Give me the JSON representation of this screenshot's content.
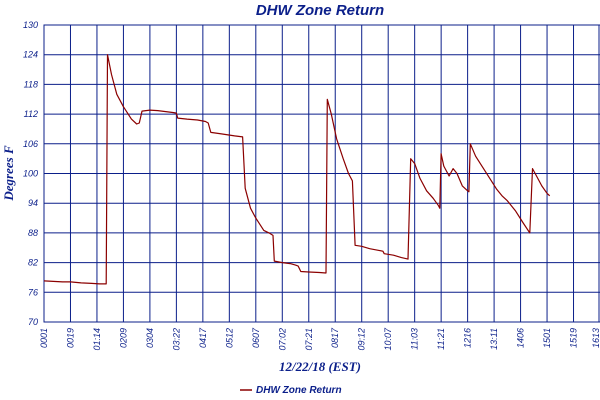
{
  "chart_data": {
    "type": "line",
    "title": "DHW Zone Return",
    "xlabel": "12/22/18 (EST)",
    "ylabel": "Degrees F",
    "ylim": [
      70,
      130
    ],
    "yticks": [
      70,
      76,
      82,
      88,
      94,
      100,
      106,
      112,
      118,
      124,
      130
    ],
    "xticks": [
      "0001",
      "0019",
      "01:14",
      "0209",
      "0304",
      "03:22",
      "0417",
      "0512",
      "0607",
      "07:02",
      "07:21",
      "0817",
      "09:12",
      "10:07",
      "11:03",
      "11:21",
      "1216",
      "13:11",
      "1406",
      "1501",
      "1519",
      "1613"
    ],
    "grid": true,
    "legend_position": "bottom",
    "colors": {
      "series": "#8b0000",
      "grid": "#0b1f8a",
      "text": "#0b1f8a"
    },
    "series": [
      {
        "name": "DHW Zone Return",
        "points": [
          [
            0.0,
            78.3
          ],
          [
            0.35,
            78.2
          ],
          [
            0.7,
            78.1
          ],
          [
            1.0,
            78.1
          ],
          [
            1.4,
            77.9
          ],
          [
            1.8,
            77.8
          ],
          [
            2.1,
            77.7
          ],
          [
            2.35,
            77.7
          ],
          [
            2.4,
            124.0
          ],
          [
            2.55,
            120.0
          ],
          [
            2.75,
            116.0
          ],
          [
            3.0,
            113.5
          ],
          [
            3.3,
            111.0
          ],
          [
            3.5,
            110.0
          ],
          [
            3.6,
            110.2
          ],
          [
            3.7,
            112.6
          ],
          [
            4.0,
            112.8
          ],
          [
            4.3,
            112.7
          ],
          [
            4.6,
            112.5
          ],
          [
            4.9,
            112.3
          ],
          [
            5.0,
            112.2
          ],
          [
            5.05,
            111.2
          ],
          [
            5.4,
            111.0
          ],
          [
            5.8,
            110.8
          ],
          [
            6.1,
            110.5
          ],
          [
            6.2,
            110.2
          ],
          [
            6.3,
            108.3
          ],
          [
            6.7,
            108.0
          ],
          [
            7.2,
            107.6
          ],
          [
            7.5,
            107.4
          ],
          [
            7.6,
            97.0
          ],
          [
            7.8,
            93.0
          ],
          [
            8.0,
            91.0
          ],
          [
            8.3,
            88.5
          ],
          [
            8.5,
            88.0
          ],
          [
            8.65,
            87.5
          ],
          [
            8.7,
            82.3
          ],
          [
            9.0,
            82.0
          ],
          [
            9.3,
            81.8
          ],
          [
            9.5,
            81.5
          ],
          [
            9.6,
            81.3
          ],
          [
            9.7,
            80.2
          ],
          [
            10.0,
            80.1
          ],
          [
            10.4,
            80.0
          ],
          [
            10.65,
            79.9
          ],
          [
            10.7,
            115.0
          ],
          [
            10.85,
            112.0
          ],
          [
            11.05,
            107.0
          ],
          [
            11.3,
            103.0
          ],
          [
            11.5,
            100.0
          ],
          [
            11.65,
            98.5
          ],
          [
            11.75,
            85.5
          ],
          [
            12.0,
            85.3
          ],
          [
            12.3,
            84.8
          ],
          [
            12.6,
            84.5
          ],
          [
            12.8,
            84.3
          ],
          [
            12.85,
            83.8
          ],
          [
            13.2,
            83.5
          ],
          [
            13.5,
            83.0
          ],
          [
            13.75,
            82.7
          ],
          [
            13.85,
            103.0
          ],
          [
            14.0,
            102.0
          ],
          [
            14.2,
            99.0
          ],
          [
            14.45,
            96.5
          ],
          [
            14.7,
            95.0
          ],
          [
            14.9,
            93.5
          ],
          [
            14.95,
            93.0
          ],
          [
            15.0,
            104.0
          ],
          [
            15.1,
            101.5
          ],
          [
            15.3,
            99.5
          ],
          [
            15.45,
            101.0
          ],
          [
            15.6,
            100.0
          ],
          [
            15.8,
            97.5
          ],
          [
            16.0,
            96.5
          ],
          [
            16.05,
            96.3
          ],
          [
            16.1,
            106.0
          ],
          [
            16.3,
            103.5
          ],
          [
            16.6,
            101.0
          ],
          [
            16.9,
            98.5
          ],
          [
            17.1,
            96.8
          ],
          [
            17.3,
            95.5
          ],
          [
            17.5,
            94.5
          ],
          [
            17.8,
            92.5
          ],
          [
            18.1,
            90.0
          ],
          [
            18.35,
            88.0
          ],
          [
            18.45,
            101.0
          ],
          [
            18.6,
            99.5
          ],
          [
            18.8,
            97.5
          ],
          [
            19.0,
            96.0
          ],
          [
            19.1,
            95.5
          ]
        ]
      }
    ]
  }
}
